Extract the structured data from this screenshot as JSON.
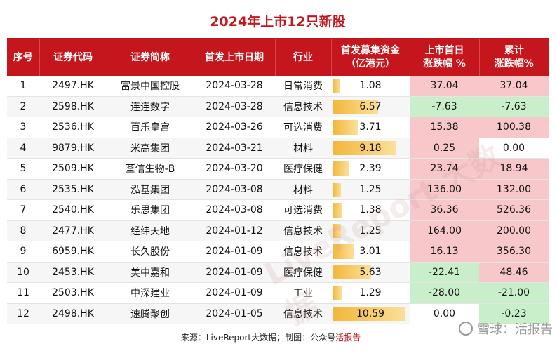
{
  "title": "2024年上市12只新股",
  "headers": {
    "seq": "序号",
    "code": "证券代码",
    "name": "证券简称",
    "date": "首发上市日期",
    "industry": "行业",
    "fund_line1": "首发募集资金",
    "fund_line2": "（亿港元）",
    "first_line1": "上市首日",
    "first_line2": "涨跌幅 %",
    "cum_line1": "累计",
    "cum_line2": "涨跌幅%"
  },
  "rows": [
    {
      "seq": "1",
      "code": "2497.HK",
      "name": "富景中国控股",
      "date": "2024-03-28",
      "industry": "日常消费",
      "fund": "1.08",
      "fund_value": 1.08,
      "first": "37.04",
      "first_value": 37.04,
      "cum": "37.04",
      "cum_value": 37.04
    },
    {
      "seq": "2",
      "code": "2598.HK",
      "name": "连连数字",
      "date": "2024-03-28",
      "industry": "信息技术",
      "fund": "6.57",
      "fund_value": 6.57,
      "first": "-7.63",
      "first_value": -7.63,
      "cum": "-7.63",
      "cum_value": -7.63
    },
    {
      "seq": "3",
      "code": "2536.HK",
      "name": "百乐皇宫",
      "date": "2024-03-26",
      "industry": "可选消费",
      "fund": "3.71",
      "fund_value": 3.71,
      "first": "15.38",
      "first_value": 15.38,
      "cum": "100.38",
      "cum_value": 100.38
    },
    {
      "seq": "4",
      "code": "9879.HK",
      "name": "米高集团",
      "date": "2024-03-21",
      "industry": "材料",
      "fund": "9.18",
      "fund_value": 9.18,
      "first": "0.25",
      "first_value": 0.25,
      "cum": "0.00",
      "cum_value": 0
    },
    {
      "seq": "5",
      "code": "2509.HK",
      "name": "荃信生物-B",
      "date": "2024-03-20",
      "industry": "医疗保健",
      "fund": "2.39",
      "fund_value": 2.39,
      "first": "23.74",
      "first_value": 23.74,
      "cum": "18.94",
      "cum_value": 18.94
    },
    {
      "seq": "6",
      "code": "2535.HK",
      "name": "泓基集团",
      "date": "2024-03-08",
      "industry": "材料",
      "fund": "1.25",
      "fund_value": 1.25,
      "first": "136.00",
      "first_value": 136.0,
      "cum": "132.00",
      "cum_value": 132.0
    },
    {
      "seq": "7",
      "code": "2540.HK",
      "name": "乐思集团",
      "date": "2024-03-08",
      "industry": "可选消费",
      "fund": "1.38",
      "fund_value": 1.38,
      "first": "36.36",
      "first_value": 36.36,
      "cum": "526.36",
      "cum_value": 526.36
    },
    {
      "seq": "8",
      "code": "2477.HK",
      "name": "经纬天地",
      "date": "2024-01-12",
      "industry": "信息技术",
      "fund": "1.25",
      "fund_value": 1.25,
      "first": "164.00",
      "first_value": 164.0,
      "cum": "200.00",
      "cum_value": 200.0
    },
    {
      "seq": "9",
      "code": "6959.HK",
      "name": "长久股份",
      "date": "2024-01-09",
      "industry": "信息技术",
      "fund": "3.01",
      "fund_value": 3.01,
      "first": "16.13",
      "first_value": 16.13,
      "cum": "356.30",
      "cum_value": 356.3
    },
    {
      "seq": "10",
      "code": "2453.HK",
      "name": "美中嘉和",
      "date": "2024-01-09",
      "industry": "医疗保健",
      "fund": "5.63",
      "fund_value": 5.63,
      "first": "-22.41",
      "first_value": -22.41,
      "cum": "48.46",
      "cum_value": 48.46
    },
    {
      "seq": "11",
      "code": "2503.HK",
      "name": "中深建业",
      "date": "2024-01-09",
      "industry": "工业",
      "fund": "1.29",
      "fund_value": 1.29,
      "first": "-28.00",
      "first_value": -28.0,
      "cum": "-21.00",
      "cum_value": -21.0
    },
    {
      "seq": "12",
      "code": "2498.HK",
      "name": "速腾聚创",
      "date": "2024-01-05",
      "industry": "信息技术",
      "fund": "10.59",
      "fund_value": 10.59,
      "first": "0.00",
      "first_value": 0,
      "cum": "-0.23",
      "cum_value": -0.23
    }
  ],
  "footer": {
    "prefix": "来源：LiveReport大数据；制图：公众号",
    "highlight": "活报告"
  },
  "watermark": {
    "text": "雪球：活报告",
    "diagonal": "LiveReport 大数据"
  },
  "colors": {
    "accent": "#c4161c",
    "positive_bg": "#f7c7c9",
    "negative_bg": "#c8efc9",
    "bar": "#f3b63a"
  }
}
